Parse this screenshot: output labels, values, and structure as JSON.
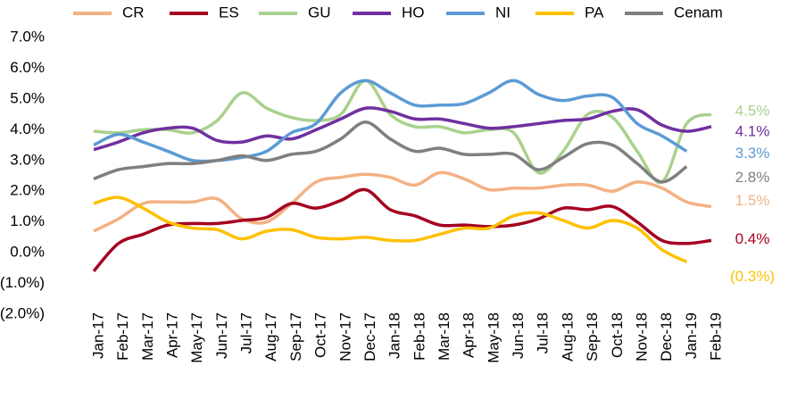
{
  "chart_data": {
    "type": "line",
    "categories": [
      "Jan-17",
      "Feb-17",
      "Mar-17",
      "Apr-17",
      "May-17",
      "Jun-17",
      "Jul-17",
      "Aug-17",
      "Sep-17",
      "Oct-17",
      "Nov-17",
      "Dec-17",
      "Jan-18",
      "Feb-18",
      "Mar-18",
      "Apr-18",
      "May-18",
      "Jun-18",
      "Jul-18",
      "Aug-18",
      "Sep-18",
      "Oct-18",
      "Nov-18",
      "Dec-18",
      "Jan-19",
      "Feb-19"
    ],
    "series": [
      {
        "name": "CR",
        "color": "#f4b183",
        "values": [
          0.7,
          1.1,
          1.6,
          1.65,
          1.65,
          1.75,
          1.1,
          1.0,
          1.6,
          2.3,
          2.45,
          2.55,
          2.45,
          2.2,
          2.6,
          2.4,
          2.05,
          2.1,
          2.1,
          2.2,
          2.2,
          2.0,
          2.3,
          2.1,
          1.65,
          1.5
        ],
        "value_labels": [
          null,
          null,
          null,
          null,
          null,
          null,
          null,
          null,
          null,
          null,
          null,
          null,
          null,
          null,
          null,
          null,
          null,
          null,
          null,
          null,
          null,
          null,
          null,
          null,
          null,
          "1.5%"
        ]
      },
      {
        "name": "ES",
        "color": "#a50021",
        "values": [
          -0.6,
          0.3,
          0.6,
          0.9,
          0.95,
          0.95,
          1.05,
          1.15,
          1.6,
          1.45,
          1.7,
          2.05,
          1.4,
          1.2,
          0.9,
          0.9,
          0.85,
          0.9,
          1.1,
          1.45,
          1.4,
          1.5,
          1.0,
          0.4,
          0.3,
          0.4
        ],
        "value_labels": [
          null,
          null,
          null,
          null,
          null,
          null,
          null,
          null,
          null,
          null,
          null,
          null,
          null,
          null,
          null,
          null,
          null,
          null,
          null,
          null,
          null,
          null,
          null,
          null,
          null,
          "0.4%"
        ]
      },
      {
        "name": "GU",
        "color": "#a9d18e",
        "values": [
          3.95,
          3.9,
          4.0,
          4.0,
          3.9,
          4.3,
          5.2,
          4.7,
          4.4,
          4.3,
          4.5,
          5.6,
          4.5,
          4.1,
          4.1,
          3.9,
          4.0,
          3.9,
          2.6,
          3.3,
          4.5,
          4.4,
          3.3,
          2.3,
          4.2,
          4.5
        ],
        "value_labels": [
          null,
          null,
          null,
          null,
          null,
          null,
          null,
          null,
          null,
          null,
          null,
          null,
          null,
          null,
          null,
          null,
          null,
          null,
          null,
          null,
          null,
          null,
          null,
          null,
          null,
          "4.5%"
        ]
      },
      {
        "name": "HO",
        "color": "#7030a0",
        "values": [
          3.35,
          3.6,
          3.9,
          4.05,
          4.05,
          3.65,
          3.6,
          3.8,
          3.7,
          4.0,
          4.35,
          4.7,
          4.6,
          4.35,
          4.35,
          4.2,
          4.05,
          4.1,
          4.2,
          4.3,
          4.35,
          4.6,
          4.65,
          4.15,
          3.95,
          4.1
        ],
        "value_labels": [
          null,
          null,
          null,
          null,
          null,
          null,
          null,
          null,
          null,
          null,
          null,
          null,
          null,
          null,
          null,
          null,
          null,
          null,
          null,
          null,
          null,
          null,
          null,
          null,
          null,
          "4.1%"
        ]
      },
      {
        "name": "NI",
        "color": "#5b9bd5",
        "values": [
          3.5,
          3.85,
          3.6,
          3.3,
          3.0,
          3.0,
          3.1,
          3.3,
          3.9,
          4.2,
          5.2,
          5.6,
          5.2,
          4.8,
          4.8,
          4.85,
          5.2,
          5.6,
          5.15,
          4.95,
          5.1,
          5.05,
          4.2,
          3.8,
          3.3,
          null
        ],
        "value_labels": [
          null,
          null,
          null,
          null,
          null,
          null,
          null,
          null,
          null,
          null,
          null,
          null,
          null,
          null,
          null,
          null,
          null,
          null,
          null,
          null,
          null,
          null,
          null,
          null,
          "3.3%",
          null
        ]
      },
      {
        "name": "PA",
        "color": "#ffc000",
        "values": [
          1.6,
          1.8,
          1.45,
          1.0,
          0.8,
          0.75,
          0.45,
          0.7,
          0.75,
          0.5,
          0.45,
          0.5,
          0.4,
          0.4,
          0.6,
          0.8,
          0.8,
          1.2,
          1.3,
          1.05,
          0.8,
          1.05,
          0.8,
          0.1,
          -0.3,
          null
        ],
        "value_labels": [
          null,
          null,
          null,
          null,
          null,
          null,
          null,
          null,
          null,
          null,
          null,
          null,
          null,
          null,
          null,
          null,
          null,
          null,
          null,
          null,
          null,
          null,
          null,
          null,
          "(0.3%)",
          null
        ]
      },
      {
        "name": "Cenam",
        "color": "#7f7f7f",
        "values": [
          2.4,
          2.7,
          2.8,
          2.9,
          2.9,
          3.0,
          3.15,
          3.0,
          3.2,
          3.3,
          3.7,
          4.25,
          3.7,
          3.3,
          3.4,
          3.2,
          3.2,
          3.2,
          2.7,
          3.1,
          3.55,
          3.5,
          2.9,
          2.3,
          2.8,
          null
        ],
        "value_labels": [
          null,
          null,
          null,
          null,
          null,
          null,
          null,
          null,
          null,
          null,
          null,
          null,
          null,
          null,
          null,
          null,
          null,
          null,
          null,
          null,
          null,
          null,
          null,
          null,
          "2.8%",
          null
        ]
      }
    ],
    "ylim": [
      -2,
      7
    ],
    "yticks": [
      {
        "value": 7,
        "label": "7.0%"
      },
      {
        "value": 6,
        "label": "6.0%"
      },
      {
        "value": 5,
        "label": "5.0%"
      },
      {
        "value": 4,
        "label": "4.0%"
      },
      {
        "value": 3,
        "label": "3.0%"
      },
      {
        "value": 2,
        "label": "2.0%"
      },
      {
        "value": 1,
        "label": "1.0%"
      },
      {
        "value": 0,
        "label": "0.0%"
      },
      {
        "value": -1,
        "label": "(1.0%)"
      },
      {
        "value": -2,
        "label": "(2.0%)"
      }
    ],
    "grid": false,
    "legend": "top"
  }
}
